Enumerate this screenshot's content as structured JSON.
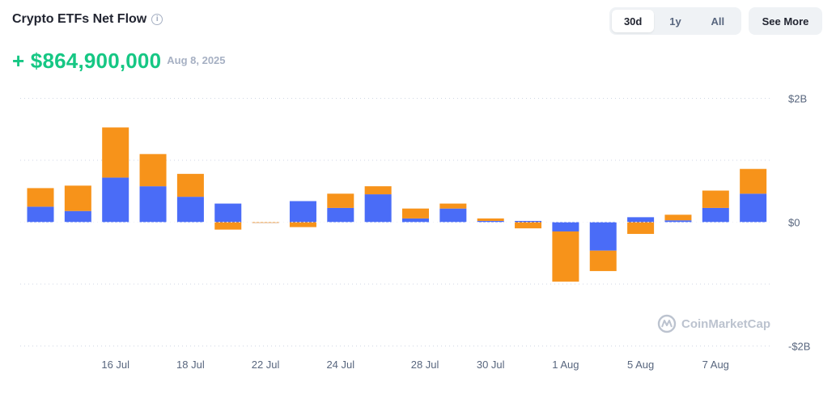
{
  "header": {
    "title": "Crypto ETFs Net Flow",
    "info_icon": "info-icon",
    "ranges": [
      "30d",
      "1y",
      "All"
    ],
    "active_range": "30d",
    "see_more_label": "See More"
  },
  "summary": {
    "net_flow": "+ $864,900,000",
    "date": "Aug 8, 2025"
  },
  "watermark": "CoinMarketCap",
  "colors": {
    "positive_text": "#16c784",
    "series_blue": "#4a6cf7",
    "series_orange": "#f7931a"
  },
  "chart_data": {
    "type": "bar",
    "stacked": true,
    "unit": "USD (billions)",
    "y_ticks": [
      {
        "value": 2,
        "label": "$2B"
      },
      {
        "value": 0,
        "label": "$0"
      },
      {
        "value": -2,
        "label": "-$2B"
      }
    ],
    "ylim": [
      -2,
      2
    ],
    "x_tick_labels": [
      {
        "index": 2,
        "label": "16 Jul"
      },
      {
        "index": 4,
        "label": "18 Jul"
      },
      {
        "index": 6,
        "label": "22 Jul"
      },
      {
        "index": 8,
        "label": "24 Jul"
      },
      {
        "index": 10.25,
        "label": "28 Jul"
      },
      {
        "index": 12,
        "label": "30 Jul"
      },
      {
        "index": 14,
        "label": "1 Aug"
      },
      {
        "index": 16,
        "label": "5 Aug"
      },
      {
        "index": 18,
        "label": "7 Aug"
      }
    ],
    "series": [
      {
        "name": "Blue",
        "color": "#4a6cf7",
        "values": [
          0.25,
          0.18,
          0.72,
          0.58,
          0.41,
          0.3,
          0.0,
          0.34,
          0.23,
          0.45,
          0.06,
          0.22,
          0.02,
          0.02,
          -0.15,
          -0.46,
          0.08,
          0.03,
          0.23,
          0.46
        ]
      },
      {
        "name": "Orange",
        "color": "#f7931a",
        "values": [
          0.3,
          0.41,
          0.81,
          0.52,
          0.37,
          -0.12,
          -0.01,
          -0.08,
          0.23,
          0.13,
          0.16,
          0.08,
          0.04,
          -0.1,
          -0.81,
          -0.33,
          -0.19,
          0.09,
          0.28,
          0.4
        ]
      }
    ]
  }
}
